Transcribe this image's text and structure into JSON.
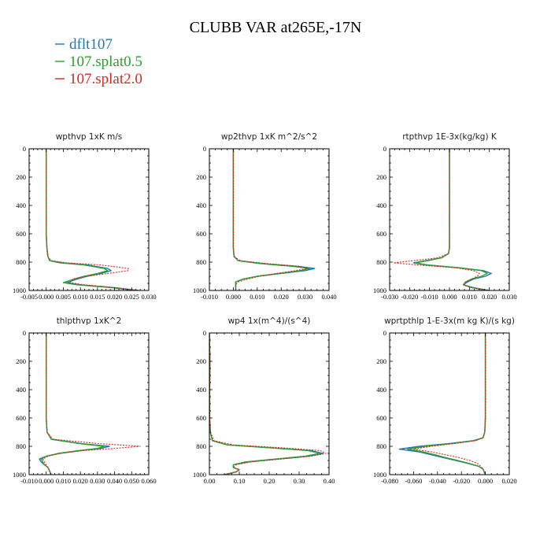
{
  "figure_title": "CLUBB VAR at265E,-17N",
  "legend": [
    {
      "label": "dflt107",
      "color": "#1f77b4",
      "dash": "solid"
    },
    {
      "label": "107.splat0.5",
      "color": "#2ca02c",
      "dash": "solid"
    },
    {
      "label": "107.splat2.0",
      "color": "#d62728",
      "dash": "dotted"
    }
  ],
  "chart_data": [
    {
      "type": "line",
      "title": "wpthvp  1xK m/s",
      "xlim": [
        -0.005,
        0.03
      ],
      "ylim": [
        0,
        1000
      ],
      "y_inverted": true,
      "xticks": [
        "-0.005",
        "0.000",
        "0.005",
        "0.010",
        "0.015",
        "0.020",
        "0.025",
        "0.030"
      ],
      "yticks": [
        "0",
        "200",
        "400",
        "600",
        "800",
        "1000"
      ],
      "y": [
        0,
        200,
        400,
        600,
        700,
        760,
        790,
        805,
        820,
        845,
        860,
        880,
        900,
        920,
        945,
        960,
        980,
        1000
      ],
      "series": [
        {
          "name": "dflt107",
          "values": [
            0,
            0,
            0,
            0,
            0.0002,
            0.0005,
            0.001,
            0.005,
            0.012,
            0.018,
            0.019,
            0.016,
            0.012,
            0.009,
            0.006,
            0.01,
            0.02,
            0.027
          ]
        },
        {
          "name": "107.splat0.5",
          "values": [
            0,
            0,
            0,
            0,
            0.0002,
            0.0005,
            0.001,
            0.004,
            0.011,
            0.017,
            0.018,
            0.015,
            0.011,
            0.008,
            0.005,
            0.009,
            0.019,
            0.026
          ]
        },
        {
          "name": "107.splat2.0",
          "values": [
            0,
            0,
            0,
            0,
            0.0002,
            0.0004,
            0.0015,
            0.006,
            0.016,
            0.024,
            0.024,
            0.018,
            0.012,
            0.008,
            0.007,
            0.011,
            0.02,
            0.026
          ]
        }
      ]
    },
    {
      "type": "line",
      "title": "wp2thvp  1xK m^2/s^2",
      "xlim": [
        -0.01,
        0.04
      ],
      "ylim": [
        0,
        1000
      ],
      "y_inverted": true,
      "xticks": [
        "-0.010",
        "0.000",
        "0.010",
        "0.020",
        "0.030",
        "0.040"
      ],
      "yticks": [
        "0",
        "200",
        "400",
        "600",
        "800",
        "1000"
      ],
      "y": [
        0,
        200,
        400,
        600,
        700,
        760,
        790,
        810,
        830,
        845,
        860,
        880,
        900,
        920,
        940,
        960,
        1000
      ],
      "series": [
        {
          "name": "dflt107",
          "values": [
            0,
            0,
            0,
            0,
            0,
            0.0003,
            0.002,
            0.012,
            0.027,
            0.034,
            0.03,
            0.02,
            0.01,
            0.004,
            0.001,
            0.001,
            0.001
          ]
        },
        {
          "name": "107.splat0.5",
          "values": [
            0,
            0,
            0,
            0,
            0,
            0.0003,
            0.002,
            0.011,
            0.025,
            0.032,
            0.028,
            0.019,
            0.01,
            0.004,
            0.001,
            0.001,
            0.001
          ]
        },
        {
          "name": "107.splat2.0",
          "values": [
            0,
            0,
            0,
            0,
            0,
            0.0004,
            0.003,
            0.014,
            0.028,
            0.031,
            0.026,
            0.018,
            0.011,
            0.006,
            0.002,
            0.001,
            0.001
          ]
        }
      ]
    },
    {
      "type": "line",
      "title": "rtpthvp  1E-3x(kg/kg) K",
      "xlim": [
        -0.03,
        0.03
      ],
      "ylim": [
        0,
        1000
      ],
      "y_inverted": true,
      "xticks": [
        "-0.030",
        "-0.020",
        "-0.010",
        "0.000",
        "0.010",
        "0.020",
        "0.030"
      ],
      "yticks": [
        "0",
        "200",
        "400",
        "600",
        "800",
        "1000"
      ],
      "y": [
        0,
        200,
        400,
        600,
        700,
        740,
        770,
        790,
        805,
        820,
        840,
        860,
        880,
        900,
        920,
        940,
        960,
        980,
        1000
      ],
      "series": [
        {
          "name": "dflt107",
          "values": [
            0,
            0,
            0,
            0,
            0,
            -0.0005,
            -0.004,
            -0.012,
            -0.018,
            -0.012,
            0.005,
            0.017,
            0.021,
            0.018,
            0.012,
            0.009,
            0.007,
            0.012,
            0.02
          ]
        },
        {
          "name": "107.splat0.5",
          "values": [
            0,
            0,
            0,
            0,
            0,
            -0.0005,
            -0.004,
            -0.011,
            -0.017,
            -0.011,
            0.005,
            0.016,
            0.019,
            0.016,
            0.011,
            0.008,
            0.007,
            0.011,
            0.019
          ]
        },
        {
          "name": "107.splat2.0",
          "values": [
            0,
            0,
            0,
            0,
            0,
            -0.0006,
            -0.006,
            -0.018,
            -0.028,
            -0.016,
            0.003,
            0.012,
            0.015,
            0.014,
            0.011,
            0.008,
            0.007,
            0.011,
            0.019
          ]
        }
      ]
    },
    {
      "type": "line",
      "title": "thlpthvp  1xK^2",
      "xlim": [
        -0.01,
        0.06
      ],
      "ylim": [
        0,
        1000
      ],
      "y_inverted": true,
      "xticks": [
        "-0.010",
        "0.000",
        "0.010",
        "0.020",
        "0.030",
        "0.040",
        "0.050",
        "0.060"
      ],
      "yticks": [
        "0",
        "200",
        "400",
        "600",
        "800",
        "1000"
      ],
      "y": [
        0,
        200,
        400,
        600,
        700,
        750,
        780,
        800,
        815,
        830,
        850,
        870,
        890,
        910,
        930,
        950,
        975,
        1000
      ],
      "series": [
        {
          "name": "dflt107",
          "values": [
            0,
            0,
            0,
            0,
            0.0005,
            0.003,
            0.02,
            0.037,
            0.032,
            0.02,
            0.008,
            0.0,
            -0.004,
            -0.003,
            -0.001,
            0.001,
            0.002,
            0.003
          ]
        },
        {
          "name": "107.splat0.5",
          "values": [
            0,
            0,
            0,
            0,
            0.0005,
            0.003,
            0.019,
            0.034,
            0.03,
            0.019,
            0.007,
            0.0,
            -0.003,
            -0.002,
            -0.001,
            0.001,
            0.002,
            0.003
          ]
        },
        {
          "name": "107.splat2.0",
          "values": [
            0,
            0,
            0,
            0,
            0.0005,
            0.004,
            0.03,
            0.055,
            0.04,
            0.022,
            0.008,
            0.001,
            -0.002,
            -0.001,
            0.0,
            0.001,
            0.002,
            0.003
          ]
        }
      ]
    },
    {
      "type": "line",
      "title": "wp4  1x(m^4)/(s^4)",
      "xlim": [
        0,
        0.4
      ],
      "ylim": [
        0,
        1000
      ],
      "y_inverted": true,
      "xticks": [
        "0.00",
        "0.10",
        "0.20",
        "0.30",
        "0.40"
      ],
      "yticks": [
        "0",
        "200",
        "400",
        "600",
        "800",
        "1000"
      ],
      "y": [
        0,
        200,
        400,
        600,
        700,
        760,
        790,
        810,
        830,
        850,
        870,
        890,
        910,
        930,
        950,
        965,
        980,
        1000
      ],
      "series": [
        {
          "name": "dflt107",
          "values": [
            0,
            0.002,
            0.001,
            0.001,
            0.003,
            0.01,
            0.06,
            0.2,
            0.34,
            0.38,
            0.33,
            0.23,
            0.13,
            0.08,
            0.08,
            0.1,
            0.09,
            0.05
          ]
        },
        {
          "name": "107.splat0.5",
          "values": [
            0,
            0.002,
            0.001,
            0.001,
            0.003,
            0.01,
            0.06,
            0.2,
            0.33,
            0.37,
            0.32,
            0.22,
            0.12,
            0.08,
            0.08,
            0.1,
            0.09,
            0.05
          ]
        },
        {
          "name": "107.splat2.0",
          "values": [
            0,
            0.002,
            0.001,
            0.001,
            0.004,
            0.015,
            0.08,
            0.24,
            0.37,
            0.39,
            0.34,
            0.24,
            0.14,
            0.09,
            0.08,
            0.1,
            0.09,
            0.05
          ]
        }
      ]
    },
    {
      "type": "line",
      "title": "wprtpthlp  1-E-3x(m kg K)/(s kg)",
      "xlim": [
        -0.08,
        0.02
      ],
      "ylim": [
        0,
        1000
      ],
      "y_inverted": true,
      "xticks": [
        "-0.080",
        "-0.060",
        "-0.040",
        "-0.020",
        "0.000",
        "0.020"
      ],
      "yticks": [
        "0",
        "200",
        "400",
        "600",
        "800",
        "1000"
      ],
      "y": [
        0,
        200,
        400,
        600,
        700,
        740,
        760,
        780,
        800,
        820,
        840,
        860,
        880,
        900,
        920,
        940,
        960,
        980,
        1000
      ],
      "series": [
        {
          "name": "dflt107",
          "values": [
            0,
            0,
            0,
            0,
            -0.0005,
            -0.002,
            -0.01,
            -0.03,
            -0.055,
            -0.072,
            -0.055,
            -0.045,
            -0.035,
            -0.025,
            -0.015,
            -0.006,
            -0.002,
            -0.001,
            0
          ]
        },
        {
          "name": "107.splat0.5",
          "values": [
            0,
            0,
            0,
            0,
            -0.0005,
            -0.002,
            -0.009,
            -0.028,
            -0.05,
            -0.065,
            -0.052,
            -0.042,
            -0.033,
            -0.023,
            -0.014,
            -0.006,
            -0.002,
            -0.001,
            0
          ]
        },
        {
          "name": "107.splat2.0",
          "values": [
            0,
            0,
            0,
            0,
            -0.0005,
            -0.002,
            -0.008,
            -0.025,
            -0.045,
            -0.06,
            -0.045,
            -0.033,
            -0.022,
            -0.013,
            -0.007,
            -0.004,
            -0.002,
            -0.001,
            0
          ]
        }
      ]
    }
  ]
}
